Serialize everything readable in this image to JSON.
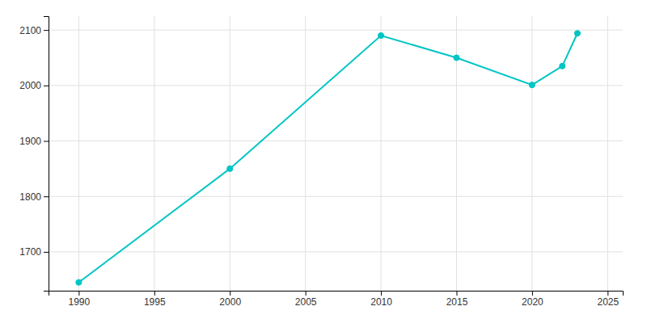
{
  "chart_data": {
    "type": "line",
    "x": [
      1990,
      2000,
      2010,
      2015,
      2020,
      2022,
      2023
    ],
    "values": [
      1645,
      1850,
      2090,
      2050,
      2001,
      2035,
      2094
    ],
    "color": "#00C5C5",
    "marker": "circle",
    "xlim": [
      1988,
      2026
    ],
    "ylim": [
      1630,
      2125
    ],
    "xticks": [
      1990,
      1995,
      2000,
      2005,
      2010,
      2015,
      2020,
      2025
    ],
    "yticks": [
      1700,
      1800,
      1900,
      2000,
      2100
    ],
    "grid": true
  }
}
